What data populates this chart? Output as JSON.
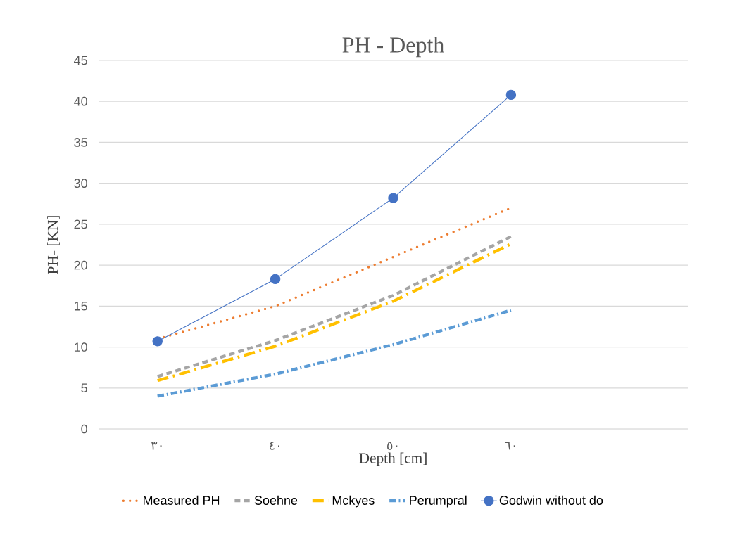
{
  "chart_data": {
    "type": "line",
    "title": "PH - Depth",
    "xlabel": "Depth [cm]",
    "ylabel": "PH- [KN]",
    "categories": [
      "٣٠",
      "٤٠",
      "٥٠",
      "٦٠",
      null
    ],
    "ylim": [
      0,
      45
    ],
    "yticks": [
      0,
      5,
      10,
      15,
      20,
      25,
      30,
      35,
      40,
      45
    ],
    "grid": "y",
    "legend": "bottom",
    "series": [
      {
        "name": "Measured PH",
        "color": "#ed7d31",
        "line_style": "dotted",
        "marker": "none",
        "values": [
          11,
          15,
          21,
          27,
          null
        ]
      },
      {
        "name": "Soehne",
        "color": "#a5a5a5",
        "line_style": "dashed",
        "marker": "none",
        "values": [
          6.4,
          10.8,
          16.3,
          23.5,
          null
        ]
      },
      {
        "name": "Mckyes",
        "color": "#ffc000",
        "line_style": "dashed",
        "marker": "none",
        "values": [
          5.9,
          10.1,
          15.6,
          22.6,
          null
        ]
      },
      {
        "name": "Perumpral",
        "color": "#5b9bd5",
        "line_style": "dashed",
        "marker": "none",
        "values": [
          4,
          6.7,
          10.3,
          14.5,
          null
        ]
      },
      {
        "name": "Godwin without do",
        "color": "#4472c4",
        "line_style": "solid",
        "marker": "circle",
        "values": [
          10.7,
          18.3,
          28.2,
          40.8,
          null
        ]
      }
    ]
  }
}
